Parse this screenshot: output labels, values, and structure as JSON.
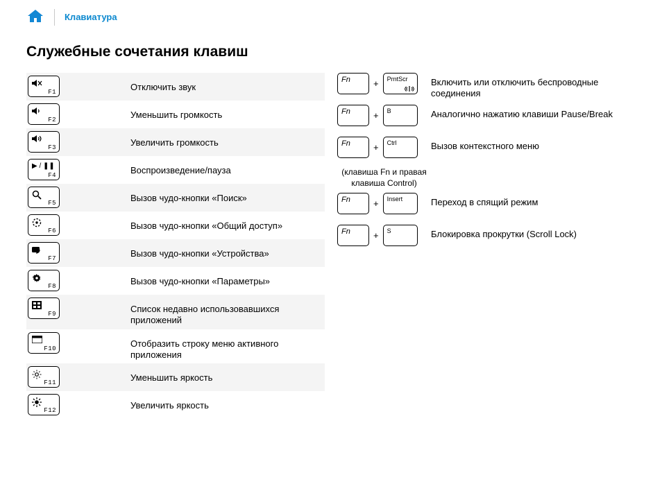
{
  "breadcrumb": {
    "label": "Клавиатура"
  },
  "title": "Служебные сочетания клавиш",
  "colors": {
    "accent": "#0b88cf",
    "alt_row": "#f4f4f4"
  },
  "left_rows": [
    {
      "fkey": "F1",
      "icon": "mute",
      "desc": "Отключить звук",
      "alt": true
    },
    {
      "fkey": "F2",
      "icon": "vol-down",
      "desc": "Уменьшить громкость",
      "alt": false
    },
    {
      "fkey": "F3",
      "icon": "vol-up",
      "desc": "Увеличить громкость",
      "alt": true
    },
    {
      "fkey": "F4",
      "icon": "play-pause",
      "desc": "Воспроизведение/пауза",
      "alt": false
    },
    {
      "fkey": "F5",
      "icon": "search",
      "desc": "Вызов чудо-кнопки «Поиск»",
      "alt": true
    },
    {
      "fkey": "F6",
      "icon": "share",
      "desc": "Вызов чудо-кнопки «Общий доступ»",
      "alt": false
    },
    {
      "fkey": "F7",
      "icon": "devices",
      "desc": "Вызов чудо-кнопки «Устройства»",
      "alt": true
    },
    {
      "fkey": "F8",
      "icon": "settings",
      "desc": "Вызов чудо-кнопки «Параметры»",
      "alt": false
    },
    {
      "fkey": "F9",
      "icon": "recent",
      "desc": "Список недавно использовавшихся приложений",
      "alt": true
    },
    {
      "fkey": "F10",
      "icon": "menu-bar",
      "desc": "Отобразить строку меню активного приложения",
      "alt": false
    },
    {
      "fkey": "F11",
      "icon": "bright-down",
      "desc": "Уменьшить яркость",
      "alt": true
    },
    {
      "fkey": "F12",
      "icon": "bright-up",
      "desc": "Увеличить яркость",
      "alt": false
    }
  ],
  "right_rows": [
    {
      "k1": "Fn",
      "k2_label": "PrntScr",
      "k2_icon": "wireless",
      "desc": "Включить или отключить беспроводные соединения"
    },
    {
      "k1": "Fn",
      "k2_label": "B",
      "k2_icon": null,
      "desc": "Аналогично нажатию клавиши Pause/Break"
    },
    {
      "k1": "Fn",
      "k2_label": "Ctrl",
      "k2_icon": null,
      "desc": "Вызов контекстного меню",
      "note": "(клавиша Fn и правая клавиша Control)"
    },
    {
      "k1": "Fn",
      "k2_label": "Insert",
      "k2_icon": null,
      "desc": "Переход в спящий режим"
    },
    {
      "k1": "Fn",
      "k2_label": "S",
      "k2_icon": null,
      "desc": "Блокировка прокрутки (Scroll Lock)"
    }
  ],
  "plus": "+"
}
